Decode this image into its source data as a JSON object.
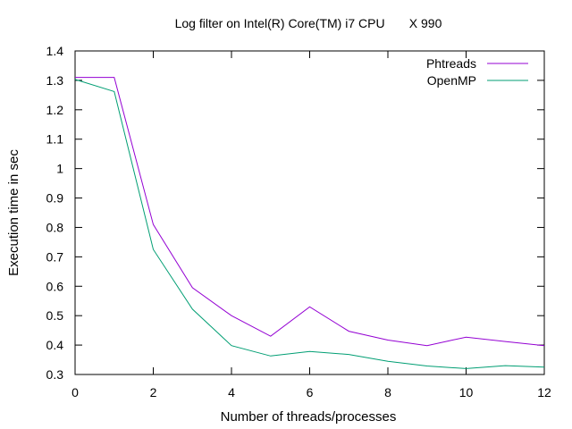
{
  "chart_data": {
    "type": "line",
    "title": "Log filter on Intel(R) Core(TM) i7 CPU       X 990",
    "xlabel": "Number of threads/processes",
    "ylabel": "Execution time in sec",
    "xlim": [
      0,
      12
    ],
    "ylim": [
      0.3,
      1.4
    ],
    "xticks": [
      0,
      2,
      4,
      6,
      8,
      10,
      12
    ],
    "yticks": [
      0.3,
      0.4,
      0.5,
      0.6,
      0.7,
      0.8,
      0.9,
      1,
      1.1,
      1.2,
      1.3,
      1.4
    ],
    "grid": false,
    "legend_position": "top-right",
    "x": [
      0,
      1,
      2,
      3,
      4,
      5,
      6,
      7,
      8,
      9,
      10,
      11,
      12
    ],
    "series": [
      {
        "name": "Phtreads",
        "color": "#9400d3",
        "values": [
          1.31,
          1.31,
          0.81,
          0.595,
          0.5,
          0.43,
          0.53,
          0.447,
          0.417,
          0.398,
          0.427,
          0.412,
          0.398
        ]
      },
      {
        "name": "OpenMP",
        "color": "#009e73",
        "values": [
          1.303,
          1.262,
          0.725,
          0.522,
          0.398,
          0.363,
          0.378,
          0.368,
          0.345,
          0.329,
          0.32,
          0.33,
          0.325
        ]
      }
    ]
  }
}
